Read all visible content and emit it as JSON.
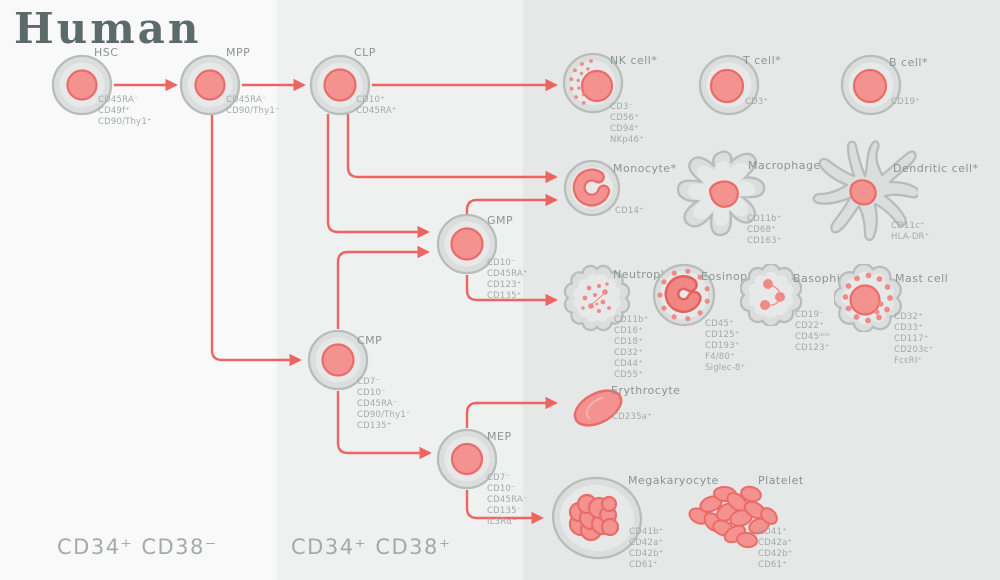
{
  "title": "Human",
  "zones": [
    {
      "label": "CD34⁺ CD38⁻"
    },
    {
      "label": "CD34⁺ CD38⁺"
    }
  ],
  "colors": {
    "accent": "#ec6562",
    "band_left": "#f8f9f8",
    "band_mid": "#eff1f0",
    "band_right": "#e5e8e7",
    "title_text": "#5d6a6a",
    "label_text": "#8a9594",
    "marker_text": "#a1abaa",
    "cell_body": "#dbdedd",
    "cell_inner": "#e6e9e8",
    "cell_outline": "#b6bdbc",
    "nucleus": "#f49290",
    "nucleus_outline": "#ea6c69",
    "granule": "#ee8a87"
  },
  "cells": {
    "hsc": {
      "label": "HSC",
      "markers": [
        "CD45RA⁻",
        "CD49f⁺",
        "CD90/Thy1⁺"
      ]
    },
    "mpp": {
      "label": "MPP",
      "markers": [
        "CD45RA⁻",
        "CD90/Thy1⁻"
      ]
    },
    "clp": {
      "label": "CLP",
      "markers": [
        "CD10⁺",
        "CD45RA⁺"
      ]
    },
    "nk": {
      "label": "NK cell*",
      "markers": [
        "CD3⁻",
        "CD56⁺",
        "CD94⁺",
        "NKp46⁺"
      ]
    },
    "tcell": {
      "label": "T cell*",
      "markers": [
        "CD3⁺"
      ]
    },
    "bcell": {
      "label": "B cell*",
      "markers": [
        "CD19⁺"
      ]
    },
    "monocyte": {
      "label": "Monocyte*",
      "markers": [
        "CD14⁺"
      ]
    },
    "macrophage": {
      "label": "Macrophage*",
      "markers": [
        "CD11b⁺",
        "CD68⁺",
        "CD163⁺"
      ]
    },
    "dendritic": {
      "label": "Dendritic cell*",
      "markers": [
        "CD11c⁺",
        "HLA-DR⁺"
      ]
    },
    "gmp": {
      "label": "GMP",
      "markers": [
        "CD10⁻",
        "CD45RA⁺",
        "CD123⁺",
        "CD135⁺"
      ]
    },
    "neutrophil": {
      "label": "Neutrophil",
      "markers": [
        "CD11b⁺",
        "CD16⁺",
        "CD18⁺",
        "CD32⁺",
        "CD44⁺",
        "CD55⁺"
      ]
    },
    "eosinophil": {
      "label": "Eosinophil",
      "markers": [
        "CD45⁺",
        "CD125⁺",
        "CD193⁺",
        "F4/80⁺",
        "Siglec-8⁺"
      ]
    },
    "basophil": {
      "label": "Basophil",
      "markers": [
        "CD19⁻",
        "CD22⁺",
        "CD45ᵈⁱᵐ",
        "CD123⁺"
      ]
    },
    "mastcell": {
      "label": "Mast cell",
      "markers": [
        "CD32⁺",
        "CD33⁺",
        "CD117⁺",
        "CD203c⁺",
        "FcεRI⁺"
      ]
    },
    "cmp": {
      "label": "CMP",
      "markers": [
        "CD7⁻",
        "CD10⁻",
        "CD45RA⁻",
        "CD90/Thy1⁻",
        "CD135⁺"
      ]
    },
    "mep": {
      "label": "MEP",
      "markers": [
        "CD7⁻",
        "CD10⁻",
        "CD45RA⁻",
        "CD135⁻",
        "IL3Rα⁻"
      ]
    },
    "erythrocyte": {
      "label": "Erythrocyte",
      "markers": [
        "CD235a⁺"
      ]
    },
    "megakaryocyte": {
      "label": "Megakaryocyte",
      "markers": [
        "CD41b⁺",
        "CD42a⁺",
        "CD42b⁺",
        "CD61⁺"
      ]
    },
    "platelet": {
      "label": "Platelet",
      "markers": [
        "CD41⁺",
        "CD42a⁺",
        "CD42b⁺",
        "CD61⁺"
      ]
    }
  }
}
